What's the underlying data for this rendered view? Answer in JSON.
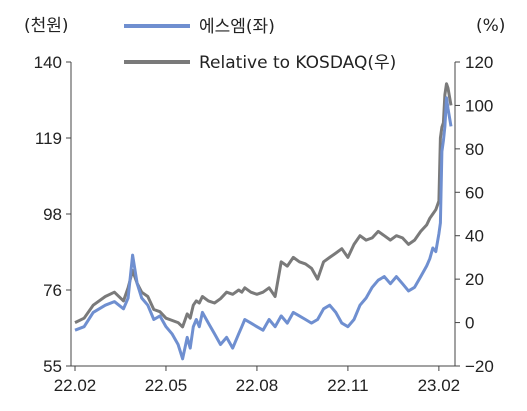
{
  "chart_data": {
    "type": "line",
    "title": "",
    "left_axis_unit": "(천원)",
    "right_axis_unit": "(%)",
    "x_ticks": [
      "22.02",
      "22.05",
      "22.08",
      "22.11",
      "23.02"
    ],
    "left_ylim": [
      55,
      140
    ],
    "left_ticks": [
      "55",
      "76",
      "98",
      "119",
      "140"
    ],
    "right_ylim": [
      -20,
      120
    ],
    "right_ticks": [
      "−20",
      "0",
      "20",
      "40",
      "60",
      "80",
      "100",
      "120"
    ],
    "legend_position": "top",
    "series": [
      {
        "name": "에스엠(좌)",
        "axis": "left",
        "color": "#6f8fd0",
        "x_months": [
          0,
          0.3,
          0.6,
          1.0,
          1.3,
          1.6,
          1.75,
          1.9,
          2.05,
          2.2,
          2.4,
          2.6,
          2.8,
          3.0,
          3.2,
          3.4,
          3.55,
          3.7,
          3.8,
          3.9,
          4.0,
          4.1,
          4.2,
          4.4,
          4.6,
          4.8,
          5.0,
          5.2,
          5.4,
          5.5,
          5.6,
          5.8,
          6.0,
          6.2,
          6.4,
          6.6,
          6.8,
          7.0,
          7.2,
          7.4,
          7.6,
          7.8,
          8.0,
          8.2,
          8.4,
          8.6,
          8.8,
          9.0,
          9.2,
          9.4,
          9.6,
          9.8,
          10.0,
          10.2,
          10.4,
          10.6,
          10.8,
          11.0,
          11.2,
          11.4,
          11.6,
          11.7,
          11.8,
          11.9,
          12.0,
          12.05,
          12.1,
          12.15,
          12.2,
          12.25,
          12.3,
          12.4
        ],
        "values": [
          65,
          66,
          70,
          72,
          73,
          71,
          74,
          86,
          78,
          74,
          72,
          68,
          69,
          66,
          64,
          61,
          57,
          63,
          60,
          66,
          68,
          66,
          70,
          67,
          64,
          61,
          63,
          60,
          64,
          66,
          68,
          67,
          66,
          65,
          68,
          66,
          69,
          67,
          70,
          69,
          68,
          67,
          68,
          71,
          72,
          70,
          67,
          66,
          68,
          72,
          74,
          77,
          79,
          80,
          78,
          80,
          78,
          76,
          77,
          80,
          83,
          85,
          88,
          87,
          92,
          95,
          115,
          118,
          122,
          130,
          127,
          122
        ]
      },
      {
        "name": "Relative to KOSDAQ(우)",
        "axis": "right",
        "color": "#7a7a7a",
        "x_months": [
          0,
          0.3,
          0.6,
          1.0,
          1.3,
          1.6,
          1.75,
          1.9,
          2.05,
          2.2,
          2.4,
          2.6,
          2.8,
          3.0,
          3.2,
          3.4,
          3.55,
          3.7,
          3.8,
          3.9,
          4.0,
          4.1,
          4.2,
          4.4,
          4.6,
          4.8,
          5.0,
          5.2,
          5.4,
          5.5,
          5.6,
          5.8,
          6.0,
          6.2,
          6.4,
          6.6,
          6.8,
          7.0,
          7.2,
          7.4,
          7.6,
          7.8,
          8.0,
          8.2,
          8.4,
          8.6,
          8.8,
          9.0,
          9.2,
          9.4,
          9.6,
          9.8,
          10.0,
          10.2,
          10.4,
          10.6,
          10.8,
          11.0,
          11.2,
          11.4,
          11.6,
          11.7,
          11.8,
          11.9,
          12.0,
          12.05,
          12.1,
          12.15,
          12.2,
          12.25,
          12.3,
          12.4
        ],
        "values": [
          0,
          2,
          8,
          12,
          14,
          10,
          16,
          24,
          18,
          14,
          12,
          6,
          5,
          2,
          1,
          0,
          -2,
          4,
          2,
          8,
          10,
          9,
          12,
          10,
          9,
          11,
          14,
          13,
          15,
          14,
          16,
          14,
          13,
          14,
          16,
          12,
          28,
          26,
          30,
          28,
          27,
          25,
          20,
          28,
          30,
          32,
          34,
          30,
          36,
          40,
          38,
          39,
          42,
          40,
          38,
          40,
          39,
          36,
          38,
          42,
          45,
          48,
          50,
          52,
          56,
          85,
          90,
          92,
          105,
          110,
          108,
          100
        ]
      }
    ]
  }
}
